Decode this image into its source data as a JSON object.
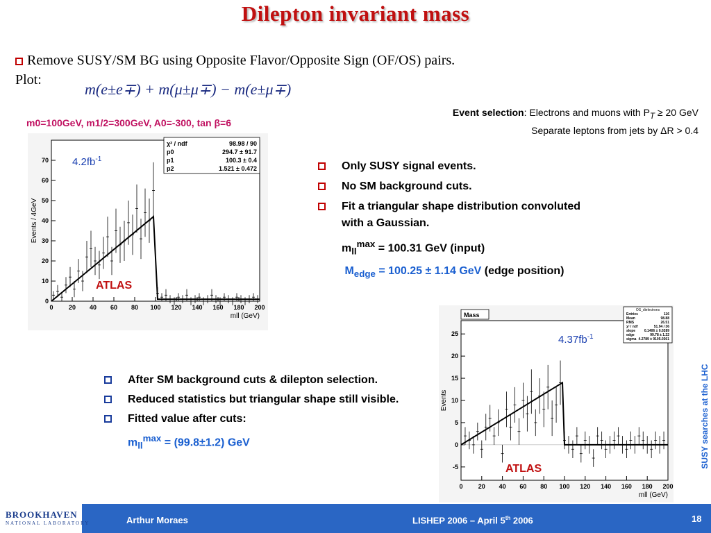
{
  "title": "Dilepton invariant mass",
  "intro": "Remove SUSY/SM BG using Opposite Flavor/Opposite Sign (OF/OS) pairs.",
  "plot_label": "Plot:",
  "formula": "m(e±e∓) + m(μ±μ∓) − m(e±μ∓)",
  "event_selection": {
    "label": "Event selection",
    "line1": ": Electrons and muons with P",
    "line1_sub": "T",
    "line1_end": " ≥ 20 GeV",
    "line2": "Separate leptons from jets by ΔR > 0.4"
  },
  "params": "m0=100GeV, m1/2=300GeV, A0=-300, tan β=6",
  "right_list": {
    "item1": "Only SUSY signal events.",
    "item2": "No SM background cuts.",
    "item3": "Fit a triangular shape distribution convoluted with a Gaussian.",
    "mll_prefix": "m",
    "mll_sub": "ll",
    "mll_sup": "max",
    "mll_value": " = 100.31 GeV (input)",
    "medge_prefix": "M",
    "medge_sub": "edge",
    "medge_value": " = 100.25 ± 1.14 GeV",
    "medge_tail": " (edge position)"
  },
  "left_list": {
    "item1": "After SM background cuts & dilepton selection.",
    "item2": "Reduced statistics but triangular shape still visible.",
    "item3": "Fitted value after cuts:",
    "mll_prefix": "m",
    "mll_sub": "ll",
    "mll_sup": "max",
    "mll_value": " = (99.8±1.2) GeV"
  },
  "footer": {
    "logo": "BROOKHAVEN",
    "logo_sub": "NATIONAL LABORATORY",
    "author": "Arthur Moraes",
    "conference": "LISHEP 2006 – April 5",
    "conference_sup": "th",
    "conference_year": " 2006",
    "page": "18"
  },
  "side_text": "SUSY searches at the LHC",
  "chart_data": [
    {
      "type": "scatter",
      "ylabel": "Events / 4GeV",
      "xlabel": "mll (GeV)",
      "xlim": [
        0,
        200
      ],
      "ylim": [
        0,
        80
      ],
      "xticks": [
        "0",
        "20",
        "40",
        "60",
        "80",
        "100",
        "120",
        "140",
        "160",
        "180",
        "200"
      ],
      "yticks": [
        "0",
        "10",
        "20",
        "30",
        "40",
        "50",
        "60",
        "70"
      ],
      "lumi": "4.2fb",
      "lumi_sup": "-1",
      "atlas": "ATLAS",
      "stats": [
        [
          "χ² / ndf",
          "98.98 / 90"
        ],
        [
          "p0",
          "294.7 ± 91.7"
        ],
        [
          "p1",
          "100.3 ± 0.4"
        ],
        [
          "p2",
          "1.521 ± 0.472"
        ]
      ],
      "fit": {
        "x": [
          0,
          98,
          102,
          200
        ],
        "y": [
          0,
          42,
          1,
          1
        ]
      },
      "x": [
        2,
        6,
        10,
        14,
        18,
        22,
        26,
        30,
        34,
        38,
        42,
        46,
        50,
        54,
        58,
        62,
        66,
        70,
        74,
        78,
        82,
        86,
        90,
        94,
        98,
        102,
        106,
        110,
        114,
        118,
        122,
        126,
        130,
        134,
        138,
        142,
        146,
        150,
        154,
        158,
        162,
        166,
        170,
        174,
        178,
        182,
        186,
        190,
        194,
        198
      ],
      "y": [
        3,
        5,
        2,
        8,
        12,
        6,
        15,
        10,
        22,
        26,
        20,
        18,
        24,
        32,
        20,
        35,
        28,
        30,
        39,
        33,
        46,
        31,
        44,
        40,
        55,
        4,
        2,
        3,
        1,
        0,
        2,
        1,
        3,
        0,
        1,
        2,
        0,
        1,
        3,
        1,
        0,
        2,
        1,
        0,
        2,
        1,
        0,
        1,
        2,
        1
      ],
      "err": [
        2,
        3,
        2,
        4,
        5,
        4,
        6,
        5,
        8,
        9,
        7,
        7,
        8,
        10,
        7,
        11,
        9,
        10,
        11,
        10,
        12,
        10,
        12,
        11,
        14,
        3,
        2,
        3,
        2,
        2,
        2,
        2,
        3,
        2,
        2,
        2,
        2,
        2,
        3,
        2,
        2,
        2,
        2,
        2,
        2,
        2,
        2,
        2,
        2,
        2
      ]
    },
    {
      "type": "scatter",
      "header": "Mass",
      "ylabel": "Events",
      "xlabel": "mll (GeV)",
      "xlim": [
        0,
        200
      ],
      "ylim": [
        -8,
        28
      ],
      "xticks": [
        "0",
        "20",
        "40",
        "60",
        "80",
        "100",
        "120",
        "140",
        "160",
        "180",
        "200"
      ],
      "yticks": [
        "-5",
        "0",
        "5",
        "10",
        "15",
        "20",
        "25"
      ],
      "lumi": "4.37fb",
      "lumi_sup": "-1",
      "atlas": "ATLAS",
      "stats_title": "OS_dielectrons",
      "stats": [
        [
          "Entries",
          "116"
        ],
        [
          "Mean",
          "98.88"
        ],
        [
          "RMS",
          "26.51"
        ],
        [
          "χ² / ndf",
          "51.94 / 36"
        ],
        [
          "slope",
          "0.1406 ± 0.0289"
        ],
        [
          "edge",
          "99.78 ± 1.22"
        ],
        [
          "sigma",
          "4.2789 ± 9105.0361"
        ]
      ],
      "fit": {
        "x": [
          0,
          98,
          100,
          200
        ],
        "y": [
          0,
          14,
          0,
          0
        ]
      },
      "x": [
        4,
        8,
        12,
        16,
        20,
        24,
        28,
        32,
        36,
        40,
        44,
        48,
        52,
        56,
        60,
        64,
        68,
        72,
        76,
        80,
        84,
        88,
        92,
        96,
        100,
        104,
        108,
        112,
        116,
        120,
        124,
        128,
        132,
        136,
        140,
        144,
        148,
        152,
        156,
        160,
        164,
        168,
        172,
        176,
        180,
        184,
        188,
        192,
        196
      ],
      "y": [
        2,
        1,
        0,
        3,
        -1,
        4,
        6,
        2,
        5,
        -2,
        8,
        4,
        9,
        3,
        10,
        7,
        12,
        5,
        11,
        8,
        13,
        6,
        9,
        14,
        1,
        0,
        -1,
        2,
        -2,
        1,
        0,
        -3,
        2,
        1,
        -1,
        0,
        1,
        2,
        0,
        -1,
        1,
        0,
        2,
        1,
        0,
        -1,
        1,
        0,
        1
      ],
      "err": [
        2,
        2,
        2,
        2,
        2,
        3,
        3,
        2,
        3,
        2,
        4,
        3,
        4,
        3,
        4,
        4,
        5,
        3,
        4,
        4,
        5,
        4,
        4,
        5,
        2,
        2,
        2,
        2,
        2,
        2,
        2,
        2,
        2,
        2,
        2,
        2,
        2,
        2,
        2,
        2,
        2,
        2,
        2,
        2,
        2,
        2,
        2,
        2,
        2
      ]
    }
  ]
}
